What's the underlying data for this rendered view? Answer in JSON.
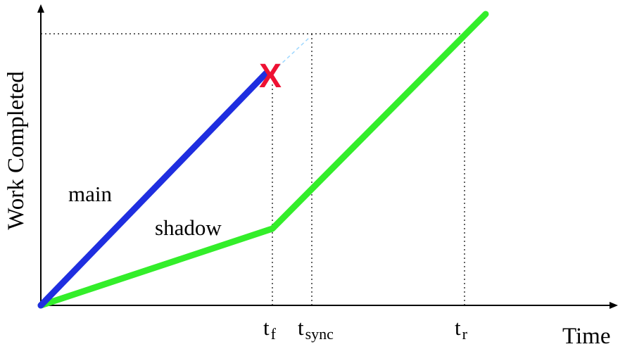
{
  "axes": {
    "ylabel": "Work Completed",
    "xlabel": "Time"
  },
  "labels": {
    "main": "main",
    "shadow": "shadow",
    "failure_mark": "X"
  },
  "ticks": {
    "tf": {
      "base": "t",
      "sub": "f"
    },
    "tsync": {
      "base": "t",
      "sub": "sync"
    },
    "tr": {
      "base": "t",
      "sub": "r"
    }
  },
  "colors": {
    "main": "#1f2ee0",
    "shadow": "#33ee2a",
    "failure": "#ee1133",
    "guide": "#000000",
    "extension": "#9fd8ff"
  }
}
